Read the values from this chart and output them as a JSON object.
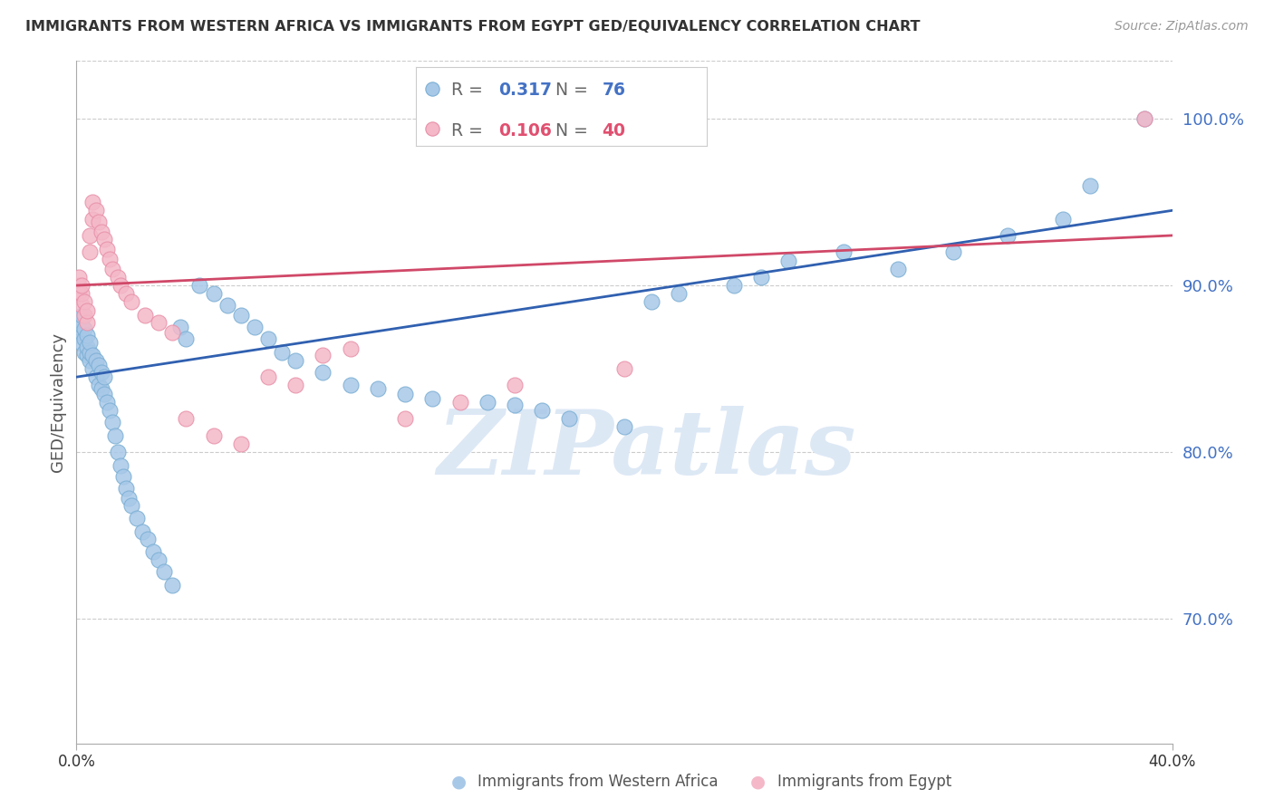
{
  "title": "IMMIGRANTS FROM WESTERN AFRICA VS IMMIGRANTS FROM EGYPT GED/EQUIVALENCY CORRELATION CHART",
  "source": "Source: ZipAtlas.com",
  "ylabel": "GED/Equivalency",
  "right_ytick_labels": [
    "100.0%",
    "90.0%",
    "80.0%",
    "70.0%"
  ],
  "right_ytick_values": [
    1.0,
    0.9,
    0.8,
    0.7
  ],
  "xlim": [
    0.0,
    0.4
  ],
  "ylim": [
    0.625,
    1.035
  ],
  "blue_color": "#a8c8e8",
  "blue_edge_color": "#7bafd4",
  "pink_color": "#f4b8c8",
  "pink_edge_color": "#e890a8",
  "blue_line_color": "#3060b0",
  "pink_line_color": "#d04868",
  "legend_blue_R": "0.317",
  "legend_blue_N": "76",
  "legend_pink_R": "0.106",
  "legend_pink_N": "40",
  "legend_R_color": "#666666",
  "legend_N_color": "#666666",
  "legend_blue_val_color": "#4472c4",
  "legend_pink_val_color": "#e05070",
  "watermark_text": "ZIPatlas",
  "watermark_color": "#dde8f5",
  "grid_color": "#cccccc",
  "blue_scatter_x": [
    0.001,
    0.001,
    0.001,
    0.001,
    0.002,
    0.002,
    0.002,
    0.002,
    0.003,
    0.003,
    0.003,
    0.004,
    0.004,
    0.004,
    0.005,
    0.005,
    0.005,
    0.006,
    0.006,
    0.007,
    0.007,
    0.008,
    0.008,
    0.009,
    0.009,
    0.01,
    0.01,
    0.011,
    0.012,
    0.013,
    0.014,
    0.015,
    0.016,
    0.017,
    0.018,
    0.019,
    0.02,
    0.022,
    0.024,
    0.026,
    0.028,
    0.03,
    0.032,
    0.035,
    0.038,
    0.04,
    0.045,
    0.05,
    0.055,
    0.06,
    0.065,
    0.07,
    0.075,
    0.08,
    0.09,
    0.1,
    0.11,
    0.12,
    0.13,
    0.15,
    0.16,
    0.17,
    0.18,
    0.2,
    0.21,
    0.22,
    0.24,
    0.25,
    0.26,
    0.28,
    0.3,
    0.32,
    0.34,
    0.36,
    0.37,
    0.39
  ],
  "blue_scatter_y": [
    0.87,
    0.875,
    0.878,
    0.88,
    0.865,
    0.872,
    0.876,
    0.882,
    0.86,
    0.868,
    0.874,
    0.858,
    0.863,
    0.87,
    0.855,
    0.86,
    0.866,
    0.85,
    0.858,
    0.845,
    0.855,
    0.84,
    0.852,
    0.838,
    0.848,
    0.835,
    0.845,
    0.83,
    0.825,
    0.818,
    0.81,
    0.8,
    0.792,
    0.785,
    0.778,
    0.772,
    0.768,
    0.76,
    0.752,
    0.748,
    0.74,
    0.735,
    0.728,
    0.72,
    0.875,
    0.868,
    0.9,
    0.895,
    0.888,
    0.882,
    0.875,
    0.868,
    0.86,
    0.855,
    0.848,
    0.84,
    0.838,
    0.835,
    0.832,
    0.83,
    0.828,
    0.825,
    0.82,
    0.815,
    0.89,
    0.895,
    0.9,
    0.905,
    0.915,
    0.92,
    0.91,
    0.92,
    0.93,
    0.94,
    0.96,
    1.0
  ],
  "pink_scatter_x": [
    0.001,
    0.001,
    0.001,
    0.002,
    0.002,
    0.002,
    0.003,
    0.003,
    0.004,
    0.004,
    0.005,
    0.005,
    0.006,
    0.006,
    0.007,
    0.008,
    0.009,
    0.01,
    0.011,
    0.012,
    0.013,
    0.015,
    0.016,
    0.018,
    0.02,
    0.025,
    0.03,
    0.035,
    0.04,
    0.05,
    0.06,
    0.07,
    0.08,
    0.09,
    0.1,
    0.12,
    0.14,
    0.16,
    0.2,
    0.39
  ],
  "pink_scatter_y": [
    0.895,
    0.9,
    0.905,
    0.888,
    0.895,
    0.9,
    0.882,
    0.89,
    0.878,
    0.885,
    0.92,
    0.93,
    0.94,
    0.95,
    0.945,
    0.938,
    0.932,
    0.928,
    0.922,
    0.916,
    0.91,
    0.905,
    0.9,
    0.895,
    0.89,
    0.882,
    0.878,
    0.872,
    0.82,
    0.81,
    0.805,
    0.845,
    0.84,
    0.858,
    0.862,
    0.82,
    0.83,
    0.84,
    0.85,
    1.0
  ],
  "blue_line_x0": 0.0,
  "blue_line_x1": 0.4,
  "blue_line_y0": 0.845,
  "blue_line_y1": 0.945,
  "pink_line_x0": 0.0,
  "pink_line_x1": 0.4,
  "pink_line_y0": 0.9,
  "pink_line_y1": 0.93
}
